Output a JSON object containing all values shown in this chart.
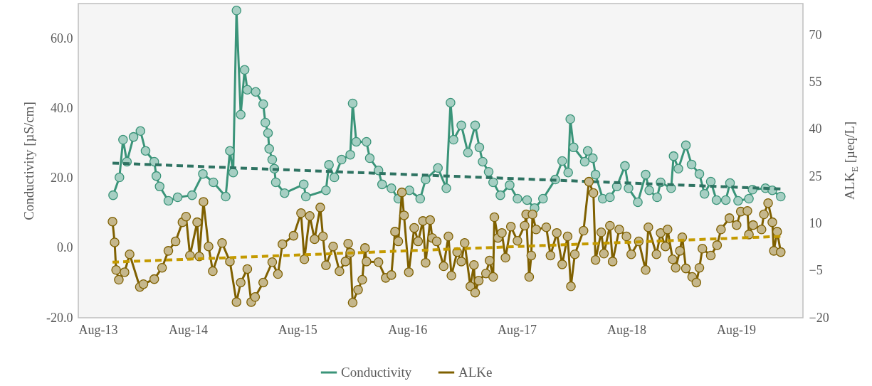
{
  "chart_data": {
    "type": "line",
    "ylabel": "Conductivity [µS/cm]",
    "y2label": "ALK$_{E}$ [µeq/L]",
    "legend": "bottom",
    "marker": "circle",
    "xlim": [
      "2013-08-01",
      "2020-03-11"
    ],
    "xticks": [
      {
        "value": "2013-08-01",
        "label": "Aug-13"
      },
      {
        "value": "2014-08-01",
        "label": "Aug-14"
      },
      {
        "value": "2015-08-01",
        "label": "Aug-15"
      },
      {
        "value": "2016-08-01",
        "label": "Aug-16"
      },
      {
        "value": "2017-08-01",
        "label": "Aug-17"
      },
      {
        "value": "2018-08-01",
        "label": "Aug-18"
      },
      {
        "value": "2019-08-01",
        "label": "Aug-19"
      }
    ],
    "ylim": [
      -20,
      70
    ],
    "yticks": [
      {
        "value": -20,
        "label": "-20.0"
      },
      {
        "value": 0,
        "label": "0.0"
      },
      {
        "value": 20,
        "label": "20.0"
      },
      {
        "value": 40,
        "label": "40.0"
      },
      {
        "value": 60,
        "label": "60.0"
      }
    ],
    "y2lim": [
      -20,
      80
    ],
    "y2ticks": [
      -20,
      -5,
      10,
      25,
      40,
      55,
      70
    ],
    "series": [
      {
        "name": "Conductivity",
        "color": "#3a9479",
        "x": [
          "2013-11-25",
          "2013-12-16",
          "2013-12-28",
          "2014-01-10",
          "2014-02-01",
          "2014-02-24",
          "2014-03-13",
          "2014-04-11",
          "2014-04-18",
          "2014-04-29",
          "2014-05-28",
          "2014-06-28",
          "2014-08-15",
          "2014-09-20",
          "2014-10-25",
          "2014-12-05",
          "2014-12-19",
          "2014-12-30",
          "2015-01-10",
          "2015-01-24",
          "2015-02-06",
          "2015-02-15",
          "2015-03-15",
          "2015-04-09",
          "2015-04-16",
          "2015-04-25",
          "2015-04-29",
          "2015-05-09",
          "2015-05-16",
          "2015-05-21",
          "2015-06-19",
          "2015-08-22",
          "2015-08-29",
          "2015-11-04",
          "2015-11-14",
          "2015-12-02",
          "2015-12-26",
          "2016-01-24",
          "2016-02-01",
          "2016-02-13",
          "2016-03-18",
          "2016-03-29",
          "2016-04-27",
          "2016-05-09",
          "2016-06-09",
          "2016-07-02",
          "2016-08-08",
          "2016-09-13",
          "2016-10-01",
          "2016-11-11",
          "2016-12-09",
          "2016-12-23",
          "2017-01-02",
          "2017-01-28",
          "2017-02-19",
          "2017-03-15",
          "2017-03-29",
          "2017-04-09",
          "2017-04-29",
          "2017-05-14",
          "2017-06-07",
          "2017-07-08",
          "2017-08-03",
          "2017-09-04",
          "2017-09-29",
          "2017-10-27",
          "2017-12-07",
          "2017-12-30",
          "2018-01-19",
          "2018-01-26",
          "2018-02-06",
          "2018-03-15",
          "2018-03-25",
          "2018-04-11",
          "2018-04-20",
          "2018-05-14",
          "2018-06-07",
          "2018-06-30",
          "2018-07-27",
          "2018-08-08",
          "2018-09-08",
          "2018-10-04",
          "2018-10-16",
          "2018-11-11",
          "2018-11-23",
          "2018-12-28",
          "2019-01-05",
          "2019-01-21",
          "2019-02-15",
          "2019-03-06",
          "2019-04-01",
          "2019-04-18",
          "2019-05-09",
          "2019-05-28",
          "2019-06-28",
          "2019-07-12",
          "2019-08-08",
          "2019-09-13",
          "2019-09-25",
          "2019-11-07",
          "2019-11-30",
          "2019-12-28"
        ],
        "values": [
          15.1,
          20.2,
          31.0,
          24.7,
          31.8,
          33.5,
          27.8,
          24.7,
          20.6,
          17.6,
          13.5,
          14.5,
          15.1,
          21.2,
          18.8,
          14.7,
          27.8,
          21.6,
          68.0,
          38.2,
          51.0,
          45.3,
          44.7,
          41.2,
          35.9,
          32.9,
          28.4,
          25.3,
          22.7,
          18.8,
          15.7,
          18.2,
          14.7,
          16.5,
          23.8,
          20.2,
          25.3,
          26.7,
          41.4,
          30.4,
          30.4,
          25.7,
          22.2,
          18.2,
          17.1,
          14.1,
          16.5,
          14.1,
          19.6,
          22.9,
          17.1,
          41.6,
          31.0,
          35.1,
          27.3,
          35.1,
          28.8,
          24.7,
          21.8,
          18.8,
          15.1,
          18.0,
          14.1,
          13.7,
          11.4,
          14.1,
          19.6,
          24.9,
          21.6,
          36.9,
          28.8,
          24.7,
          27.8,
          25.7,
          21.0,
          14.1,
          14.5,
          17.6,
          23.5,
          17.1,
          13.1,
          21.0,
          16.5,
          14.5,
          18.8,
          17.1,
          26.3,
          22.7,
          29.4,
          23.9,
          21.2,
          15.5,
          19.0,
          13.7,
          13.7,
          18.6,
          13.5,
          14.1,
          16.7,
          17.1,
          16.5,
          14.7
        ]
      },
      {
        "name": "ALKe",
        "color": "#7f6000",
        "axis": "y2",
        "x": [
          "2013-11-23",
          "2013-11-30",
          "2013-12-05",
          "2013-12-14",
          "2014-01-02",
          "2014-01-19",
          "2014-02-22",
          "2014-03-06",
          "2014-04-11",
          "2014-05-07",
          "2014-05-28",
          "2014-06-21",
          "2014-07-14",
          "2014-07-26",
          "2014-08-08",
          "2014-09-01",
          "2014-09-08",
          "2014-09-22",
          "2014-10-09",
          "2014-10-23",
          "2014-11-23",
          "2014-12-19",
          "2015-01-10",
          "2015-01-24",
          "2015-02-15",
          "2015-02-28",
          "2015-03-13",
          "2015-04-09",
          "2015-05-09",
          "2015-05-28",
          "2015-06-12",
          "2015-07-19",
          "2015-08-13",
          "2015-08-24",
          "2015-09-11",
          "2015-09-27",
          "2015-10-16",
          "2015-10-25",
          "2015-11-04",
          "2015-11-28",
          "2015-12-19",
          "2016-01-08",
          "2016-01-17",
          "2016-01-24",
          "2016-02-01",
          "2016-02-19",
          "2016-03-04",
          "2016-03-13",
          "2016-03-18",
          "2016-04-27",
          "2016-05-21",
          "2016-06-09",
          "2016-06-21",
          "2016-07-02",
          "2016-07-14",
          "2016-07-21",
          "2016-08-06",
          "2016-08-24",
          "2016-09-06",
          "2016-09-22",
          "2016-10-01",
          "2016-10-16",
          "2016-10-23",
          "2016-11-07",
          "2016-11-30",
          "2016-12-16",
          "2016-12-26",
          "2017-01-14",
          "2017-01-28",
          "2017-02-08",
          "2017-02-27",
          "2017-03-11",
          "2017-03-15",
          "2017-03-27",
          "2017-04-20",
          "2017-05-02",
          "2017-05-14",
          "2017-05-18",
          "2017-05-30",
          "2017-06-12",
          "2017-06-24",
          "2017-07-12",
          "2017-08-03",
          "2017-08-27",
          "2017-09-01",
          "2017-09-11",
          "2017-09-18",
          "2017-09-22",
          "2017-10-04",
          "2017-11-07",
          "2017-11-21",
          "2017-12-12",
          "2017-12-30",
          "2018-01-17",
          "2018-01-28",
          "2018-02-10",
          "2018-03-11",
          "2018-03-29",
          "2018-04-13",
          "2018-04-20",
          "2018-05-09",
          "2018-05-18",
          "2018-06-07",
          "2018-06-16",
          "2018-07-08",
          "2018-08-01",
          "2018-08-17",
          "2018-09-11",
          "2018-10-04",
          "2018-10-13",
          "2018-11-09",
          "2018-11-23",
          "2018-12-09",
          "2018-12-16",
          "2019-01-02",
          "2019-01-12",
          "2019-01-26",
          "2019-02-03",
          "2019-02-15",
          "2019-03-08",
          "2019-03-22",
          "2019-04-01",
          "2019-04-11",
          "2019-05-09",
          "2019-05-30",
          "2019-06-12",
          "2019-07-10",
          "2019-08-03",
          "2019-08-17",
          "2019-09-08",
          "2019-09-13",
          "2019-09-27",
          "2019-10-25",
          "2019-11-02",
          "2019-11-16",
          "2019-11-30",
          "2019-12-05",
          "2019-12-16",
          "2019-12-28"
        ],
        "values": [
          10.6,
          4.0,
          -4.8,
          -7.9,
          -5.5,
          0.2,
          -10.2,
          -9.3,
          -7.7,
          -4.1,
          1.3,
          4.3,
          10.4,
          12.2,
          -0.2,
          10.4,
          -0.5,
          16.9,
          2.7,
          -5.2,
          3.8,
          -2.1,
          -15.0,
          -8.8,
          -4.5,
          -15.0,
          -13.4,
          -8.8,
          -2.3,
          -6.1,
          3.4,
          6.1,
          13.3,
          -1.4,
          12.4,
          5.0,
          15.1,
          5.9,
          -3.3,
          2.7,
          -5.2,
          -2.1,
          3.6,
          0.7,
          -15.2,
          -11.1,
          -7.9,
          2.2,
          -2.1,
          -2.3,
          -7.3,
          -6.4,
          7.4,
          4.3,
          19.9,
          12.6,
          -5.5,
          8.6,
          4.3,
          10.8,
          -2.5,
          11.1,
          5.4,
          4.3,
          -3.6,
          5.9,
          -6.6,
          0.9,
          -2.1,
          3.8,
          -10.0,
          -3.2,
          -12.0,
          -8.2,
          -5.9,
          -1.8,
          -7.0,
          12.0,
          5.4,
          7.0,
          -0.9,
          9.0,
          4.5,
          9.3,
          12.9,
          -7.0,
          -0.2,
          12.9,
          8.1,
          8.8,
          -0.2,
          7.0,
          -3.0,
          5.9,
          -10.0,
          0.2,
          7.7,
          23.3,
          19.7,
          -1.6,
          7.2,
          0.4,
          9.3,
          -2.1,
          8.1,
          5.9,
          0.2,
          4.3,
          -4.8,
          8.8,
          0.2,
          7.0,
          2.7,
          8.1,
          -1.4,
          -4.1,
          1.3,
          5.6,
          -4.3,
          -7.0,
          -8.8,
          -4.1,
          2.0,
          -0.2,
          3.1,
          8.1,
          11.7,
          9.5,
          13.8,
          14.0,
          6.5,
          9.5,
          8.1,
          12.9,
          16.5,
          10.4,
          1.3,
          7.4,
          0.9
        ]
      },
      {
        "type": "line",
        "color": "#2e7362",
        "line_style": "dashed",
        "marker": "none",
        "x": [
          "2013-11-23",
          "2019-12-30"
        ],
        "values": [
          24.3,
          16.9
        ]
      },
      {
        "type": "line",
        "color": "#c49a00",
        "line_style": "dashed",
        "marker": "none",
        "axis": "y2",
        "x": [
          "2013-11-23",
          "2019-12-28"
        ],
        "values": [
          -2.3,
          5.9
        ]
      }
    ]
  }
}
